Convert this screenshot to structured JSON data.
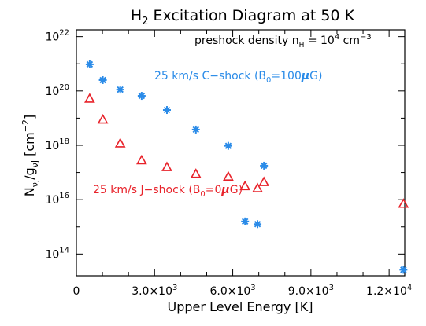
{
  "chart_data": {
    "type": "scatter",
    "title_main": "H",
    "title_sub": "2",
    "title_rest": " Excitation Diagram at 50 K",
    "xlabel": "Upper Level Energy [K]",
    "ylabel_parts": {
      "n": "N",
      "sub1": "νJ",
      "mid": "/g",
      "sub2": "νJ",
      "unit": " [cm",
      "exp": "−2",
      "close": "]"
    },
    "xlim": [
      0,
      12600
    ],
    "ylim_log10": [
      13.2,
      22.25
    ],
    "scale": {
      "x": "linear",
      "y": "log"
    },
    "x_ticks": [
      {
        "value": 0,
        "mant": "0",
        "exp": ""
      },
      {
        "value": 3000,
        "mant": "3.0×10",
        "exp": "3"
      },
      {
        "value": 6000,
        "mant": "6.0×10",
        "exp": "3"
      },
      {
        "value": 9000,
        "mant": "9.0×10",
        "exp": "3"
      },
      {
        "value": 12000,
        "mant": "1.2×10",
        "exp": "4"
      }
    ],
    "y_ticks": [
      {
        "log": 14,
        "base": "10",
        "exp": "14"
      },
      {
        "log": 16,
        "base": "10",
        "exp": "16"
      },
      {
        "log": 18,
        "base": "10",
        "exp": "18"
      },
      {
        "log": 20,
        "base": "10",
        "exp": "20"
      },
      {
        "log": 22,
        "base": "10",
        "exp": "22"
      }
    ],
    "annotation": {
      "text": "preshock density n",
      "sub": "H",
      "eq": " = 10",
      "exp": "4",
      "unit": " cm",
      "unit_exp": "−3"
    },
    "series": [
      {
        "name": "25 km/s C−shock (B",
        "name_sub": "0",
        "name_tail": "=100",
        "name_mu": "μ",
        "name_end": "G)",
        "marker": "asterisk",
        "color": "#2a8be8",
        "points": [
          {
            "x": 510,
            "y_log10": 20.98
          },
          {
            "x": 1015,
            "y_log10": 20.4
          },
          {
            "x": 1682,
            "y_log10": 20.05
          },
          {
            "x": 2504,
            "y_log10": 19.82
          },
          {
            "x": 3474,
            "y_log10": 19.3
          },
          {
            "x": 4586,
            "y_log10": 18.58
          },
          {
            "x": 5829,
            "y_log10": 17.98
          },
          {
            "x": 6472,
            "y_log10": 15.2
          },
          {
            "x": 6951,
            "y_log10": 15.1
          },
          {
            "x": 7197,
            "y_log10": 17.25
          },
          {
            "x": 12550,
            "y_log10": 13.42
          }
        ]
      },
      {
        "name": "25 km/s J−shock (B",
        "name_sub": "0",
        "name_tail": "=0",
        "name_mu": "μ",
        "name_end": "G)",
        "marker": "triangle",
        "color": "#e8222a",
        "points": [
          {
            "x": 510,
            "y_log10": 19.72
          },
          {
            "x": 1015,
            "y_log10": 18.95
          },
          {
            "x": 1682,
            "y_log10": 18.07
          },
          {
            "x": 2504,
            "y_log10": 17.45
          },
          {
            "x": 3474,
            "y_log10": 17.2
          },
          {
            "x": 4586,
            "y_log10": 16.95
          },
          {
            "x": 5829,
            "y_log10": 16.85
          },
          {
            "x": 6472,
            "y_log10": 16.5
          },
          {
            "x": 6951,
            "y_log10": 16.42
          },
          {
            "x": 7197,
            "y_log10": 16.65
          },
          {
            "x": 12550,
            "y_log10": 15.85
          }
        ]
      }
    ]
  }
}
